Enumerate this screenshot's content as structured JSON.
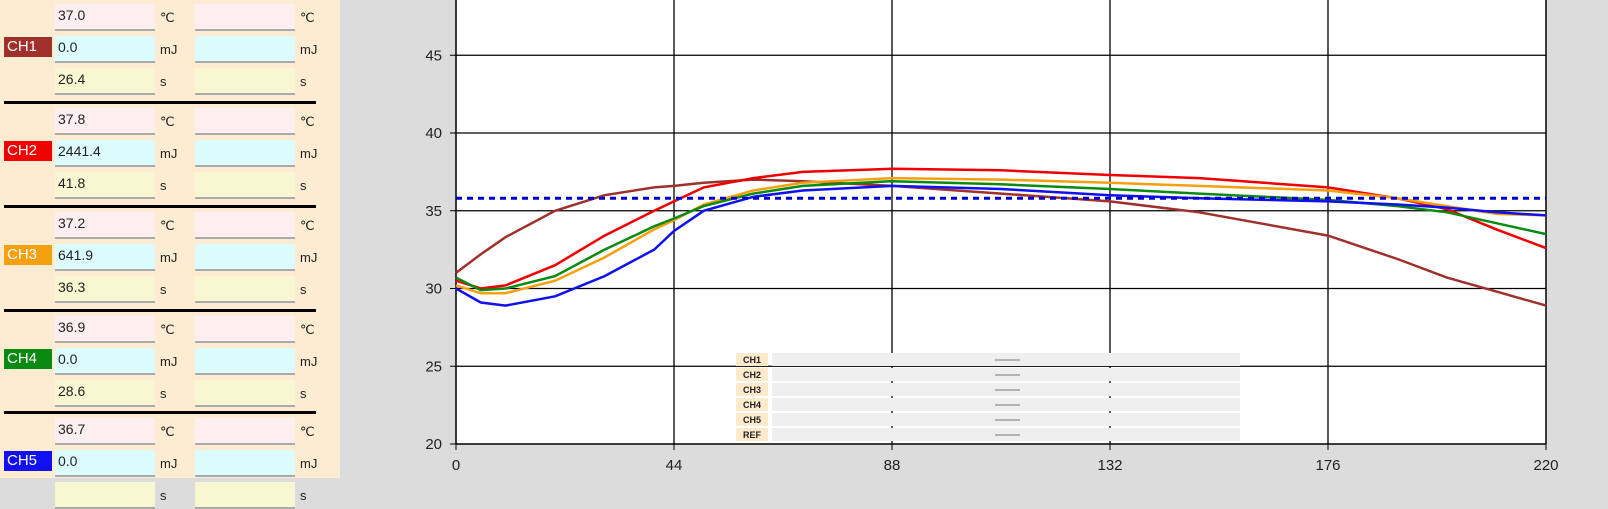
{
  "units": {
    "temp": "℃",
    "energy": "mJ",
    "time": "s"
  },
  "channels": [
    {
      "label": "CH1",
      "color": "#a0302c",
      "temp": "37.0",
      "energy": "0.0",
      "time": "26.4"
    },
    {
      "label": "CH2",
      "color": "#f00000",
      "temp": "37.8",
      "energy": "2441.4",
      "time": "41.8"
    },
    {
      "label": "CH3",
      "color": "#f5a010",
      "temp": "37.2",
      "energy": "641.9",
      "time": "36.3"
    },
    {
      "label": "CH4",
      "color": "#0a8a10",
      "temp": "36.9",
      "energy": "0.0",
      "time": "28.6"
    },
    {
      "label": "CH5",
      "color": "#1010f0",
      "temp": "36.7",
      "energy": "0.0",
      "time": ""
    }
  ],
  "field_colors": {
    "temp": "#fdeef0",
    "energy": "#dcfbfd",
    "time": "#f8f7d2"
  },
  "chart_data": {
    "type": "line",
    "xlim": [
      0,
      220
    ],
    "ylim": [
      20,
      48.5
    ],
    "xticks": [
      "0",
      "44",
      "88",
      "132",
      "176",
      "220"
    ],
    "yticks": [
      "20",
      "25",
      "30",
      "35",
      "40",
      "45"
    ],
    "grid": true,
    "legend": {
      "placement": "bottom-center",
      "entries": [
        "CH1",
        "CH2",
        "CH3",
        "CH4",
        "CH5",
        "REF"
      ]
    },
    "x": [
      0,
      5,
      10,
      20,
      30,
      40,
      44,
      50,
      60,
      70,
      88,
      110,
      132,
      150,
      176,
      190,
      200,
      210,
      220
    ],
    "series": [
      {
        "name": "CH1",
        "color": "#a0302c",
        "values": [
          31,
          32.2,
          33.3,
          35,
          36,
          36.5,
          36.6,
          36.8,
          37.0,
          36.9,
          36.6,
          36.1,
          35.6,
          34.9,
          33.4,
          31.9,
          30.7,
          29.8,
          28.9
        ]
      },
      {
        "name": "CH2",
        "color": "#f00000",
        "values": [
          30.5,
          30.0,
          30.2,
          31.5,
          33.4,
          35,
          35.6,
          36.5,
          37.1,
          37.5,
          37.7,
          37.6,
          37.3,
          37.1,
          36.5,
          35.8,
          35.1,
          33.8,
          32.6
        ]
      },
      {
        "name": "CH3",
        "color": "#f5a010",
        "values": [
          30.2,
          29.7,
          29.7,
          30.5,
          32,
          33.8,
          34.4,
          35.4,
          36.3,
          36.8,
          37.1,
          37.0,
          36.8,
          36.6,
          36.3,
          35.8,
          35.3,
          34.8,
          34.7
        ]
      },
      {
        "name": "CH4",
        "color": "#0a8a10",
        "values": [
          30.7,
          29.9,
          30,
          30.8,
          32.5,
          34,
          34.5,
          35.3,
          36.1,
          36.6,
          36.9,
          36.7,
          36.4,
          36.1,
          35.7,
          35.3,
          34.9,
          34.2,
          33.5
        ]
      },
      {
        "name": "CH5",
        "color": "#1010f0",
        "values": [
          30,
          29.1,
          28.9,
          29.5,
          30.8,
          32.5,
          33.7,
          35,
          35.9,
          36.3,
          36.6,
          36.4,
          36.0,
          35.8,
          35.6,
          35.4,
          35.2,
          34.9,
          34.7
        ]
      },
      {
        "name": "REF",
        "color": "#0000cc",
        "dashed": true,
        "values": [
          35.8,
          35.8,
          35.8,
          35.8,
          35.8,
          35.8,
          35.8,
          35.8,
          35.8,
          35.8,
          35.8,
          35.8,
          35.8,
          35.8,
          35.8,
          35.8,
          35.8,
          35.8,
          35.8
        ]
      }
    ]
  }
}
